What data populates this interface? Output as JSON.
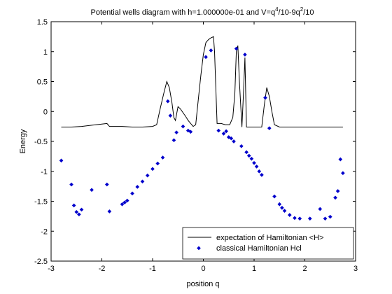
{
  "chart_data": {
    "type": "line",
    "title_parts": {
      "prefix": "Potential wells diagram with h=1.000000e-01 and V=q",
      "exp1": "4",
      "middle": "/10-9q",
      "exp2": "2",
      "suffix": "/10"
    },
    "xlabel": "position q",
    "ylabel": "Energy",
    "xlim": [
      -3,
      3
    ],
    "ylim": [
      -2.5,
      1.5
    ],
    "xticks": [
      -3,
      -2,
      -1,
      0,
      1,
      2,
      3
    ],
    "xtick_labels": [
      "-3",
      "-2",
      "-1",
      "0",
      "1",
      "2",
      "3"
    ],
    "yticks": [
      -2.5,
      -2,
      -1.5,
      -1,
      -0.5,
      0,
      0.5,
      1,
      1.5
    ],
    "ytick_labels": [
      "-2.5",
      "-2",
      "-1.5",
      "-1",
      "-0.5",
      "0",
      "0.5",
      "1",
      "1.5"
    ],
    "grid": false,
    "legend_position": "bottom-right",
    "series": [
      {
        "name": "expectation of Hamiltonian <H>",
        "style": "line",
        "color": "#000000",
        "points": [
          [
            -2.8,
            -0.26
          ],
          [
            -2.6,
            -0.26
          ],
          [
            -2.4,
            -0.25
          ],
          [
            -2.2,
            -0.23
          ],
          [
            -2.0,
            -0.21
          ],
          [
            -1.9,
            -0.2
          ],
          [
            -1.85,
            -0.25
          ],
          [
            -1.6,
            -0.25
          ],
          [
            -1.4,
            -0.26
          ],
          [
            -1.2,
            -0.26
          ],
          [
            -1.0,
            -0.25
          ],
          [
            -0.92,
            -0.22
          ],
          [
            -0.85,
            0.05
          ],
          [
            -0.78,
            0.3
          ],
          [
            -0.72,
            0.5
          ],
          [
            -0.67,
            0.4
          ],
          [
            -0.62,
            0.15
          ],
          [
            -0.58,
            -0.1
          ],
          [
            -0.55,
            -0.15
          ],
          [
            -0.5,
            0.08
          ],
          [
            -0.45,
            0.04
          ],
          [
            -0.4,
            -0.02
          ],
          [
            -0.35,
            -0.08
          ],
          [
            -0.3,
            -0.15
          ],
          [
            -0.25,
            -0.2
          ],
          [
            -0.2,
            -0.25
          ],
          [
            -0.15,
            -0.22
          ],
          [
            -0.1,
            0.2
          ],
          [
            -0.05,
            0.6
          ],
          [
            0.0,
            0.95
          ],
          [
            0.05,
            1.15
          ],
          [
            0.1,
            1.2
          ],
          [
            0.15,
            1.23
          ],
          [
            0.2,
            1.25
          ],
          [
            0.22,
            1.0
          ],
          [
            0.27,
            -0.2
          ],
          [
            0.35,
            -0.2
          ],
          [
            0.43,
            -0.22
          ],
          [
            0.52,
            -0.22
          ],
          [
            0.58,
            -0.1
          ],
          [
            0.62,
            0.3
          ],
          [
            0.65,
            1.0
          ],
          [
            0.68,
            1.1
          ],
          [
            0.71,
            0.5
          ],
          [
            0.76,
            -0.26
          ],
          [
            0.79,
            0.3
          ],
          [
            0.82,
            0.9
          ],
          [
            0.85,
            -0.26
          ],
          [
            0.95,
            -0.26
          ],
          [
            1.05,
            -0.26
          ],
          [
            1.15,
            -0.26
          ],
          [
            1.2,
            0.1
          ],
          [
            1.25,
            0.4
          ],
          [
            1.3,
            0.25
          ],
          [
            1.35,
            0.0
          ],
          [
            1.4,
            -0.22
          ],
          [
            1.5,
            -0.26
          ],
          [
            1.7,
            -0.26
          ],
          [
            1.9,
            -0.26
          ],
          [
            2.1,
            -0.26
          ],
          [
            2.3,
            -0.26
          ],
          [
            2.5,
            -0.26
          ],
          [
            2.75,
            -0.26
          ]
        ]
      },
      {
        "name": "classical Hamiltonian Hcl",
        "style": "markers",
        "color": "#0000cc",
        "points": [
          [
            -2.8,
            -0.82
          ],
          [
            -2.6,
            -1.22
          ],
          [
            -2.55,
            -1.57
          ],
          [
            -2.5,
            -1.68
          ],
          [
            -2.45,
            -1.72
          ],
          [
            -2.4,
            -1.64
          ],
          [
            -2.2,
            -1.31
          ],
          [
            -1.9,
            -1.22
          ],
          [
            -1.85,
            -1.67
          ],
          [
            -1.6,
            -1.55
          ],
          [
            -1.55,
            -1.52
          ],
          [
            -1.5,
            -1.49
          ],
          [
            -1.4,
            -1.37
          ],
          [
            -1.3,
            -1.26
          ],
          [
            -1.2,
            -1.17
          ],
          [
            -1.1,
            -1.07
          ],
          [
            -1.0,
            -0.96
          ],
          [
            -0.9,
            -0.87
          ],
          [
            -0.8,
            -0.77
          ],
          [
            -0.7,
            0.17
          ],
          [
            -0.65,
            -0.07
          ],
          [
            -0.58,
            -0.48
          ],
          [
            -0.53,
            -0.35
          ],
          [
            -0.4,
            -0.25
          ],
          [
            -0.3,
            -0.32
          ],
          [
            -0.25,
            -0.34
          ],
          [
            0.05,
            0.91
          ],
          [
            0.15,
            1.02
          ],
          [
            0.3,
            -0.32
          ],
          [
            0.4,
            -0.37
          ],
          [
            0.45,
            -0.33
          ],
          [
            0.5,
            -0.43
          ],
          [
            0.55,
            -0.45
          ],
          [
            0.6,
            -0.5
          ],
          [
            0.65,
            1.05
          ],
          [
            0.75,
            -0.58
          ],
          [
            0.82,
            0.95
          ],
          [
            0.85,
            -0.68
          ],
          [
            0.9,
            -0.74
          ],
          [
            0.95,
            -0.79
          ],
          [
            1.0,
            -0.86
          ],
          [
            1.05,
            -0.92
          ],
          [
            1.1,
            -1.0
          ],
          [
            1.15,
            -1.06
          ],
          [
            1.22,
            0.23
          ],
          [
            1.3,
            -0.28
          ],
          [
            1.4,
            -1.42
          ],
          [
            1.5,
            -1.55
          ],
          [
            1.55,
            -1.61
          ],
          [
            1.6,
            -1.66
          ],
          [
            1.7,
            -1.73
          ],
          [
            1.8,
            -1.78
          ],
          [
            1.9,
            -1.79
          ],
          [
            2.1,
            -1.79
          ],
          [
            2.3,
            -1.63
          ],
          [
            2.4,
            -1.79
          ],
          [
            2.5,
            -1.76
          ],
          [
            2.6,
            -1.44
          ],
          [
            2.65,
            -1.33
          ],
          [
            2.7,
            -0.8
          ],
          [
            2.75,
            -1.03
          ]
        ]
      }
    ]
  }
}
